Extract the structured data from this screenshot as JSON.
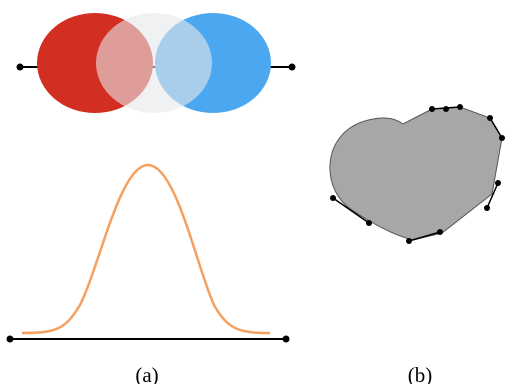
{
  "panels": [
    {
      "caption": "(a)"
    },
    {
      "caption": "(b)"
    }
  ],
  "colors": {
    "left_circle": "#d22e21",
    "middle_circle": "#e6e8ea",
    "right_circle": "#4ba8f0",
    "gaussian_curve": "#f6a060",
    "blob_fill": "#a6a8a6",
    "line": "#000000"
  }
}
